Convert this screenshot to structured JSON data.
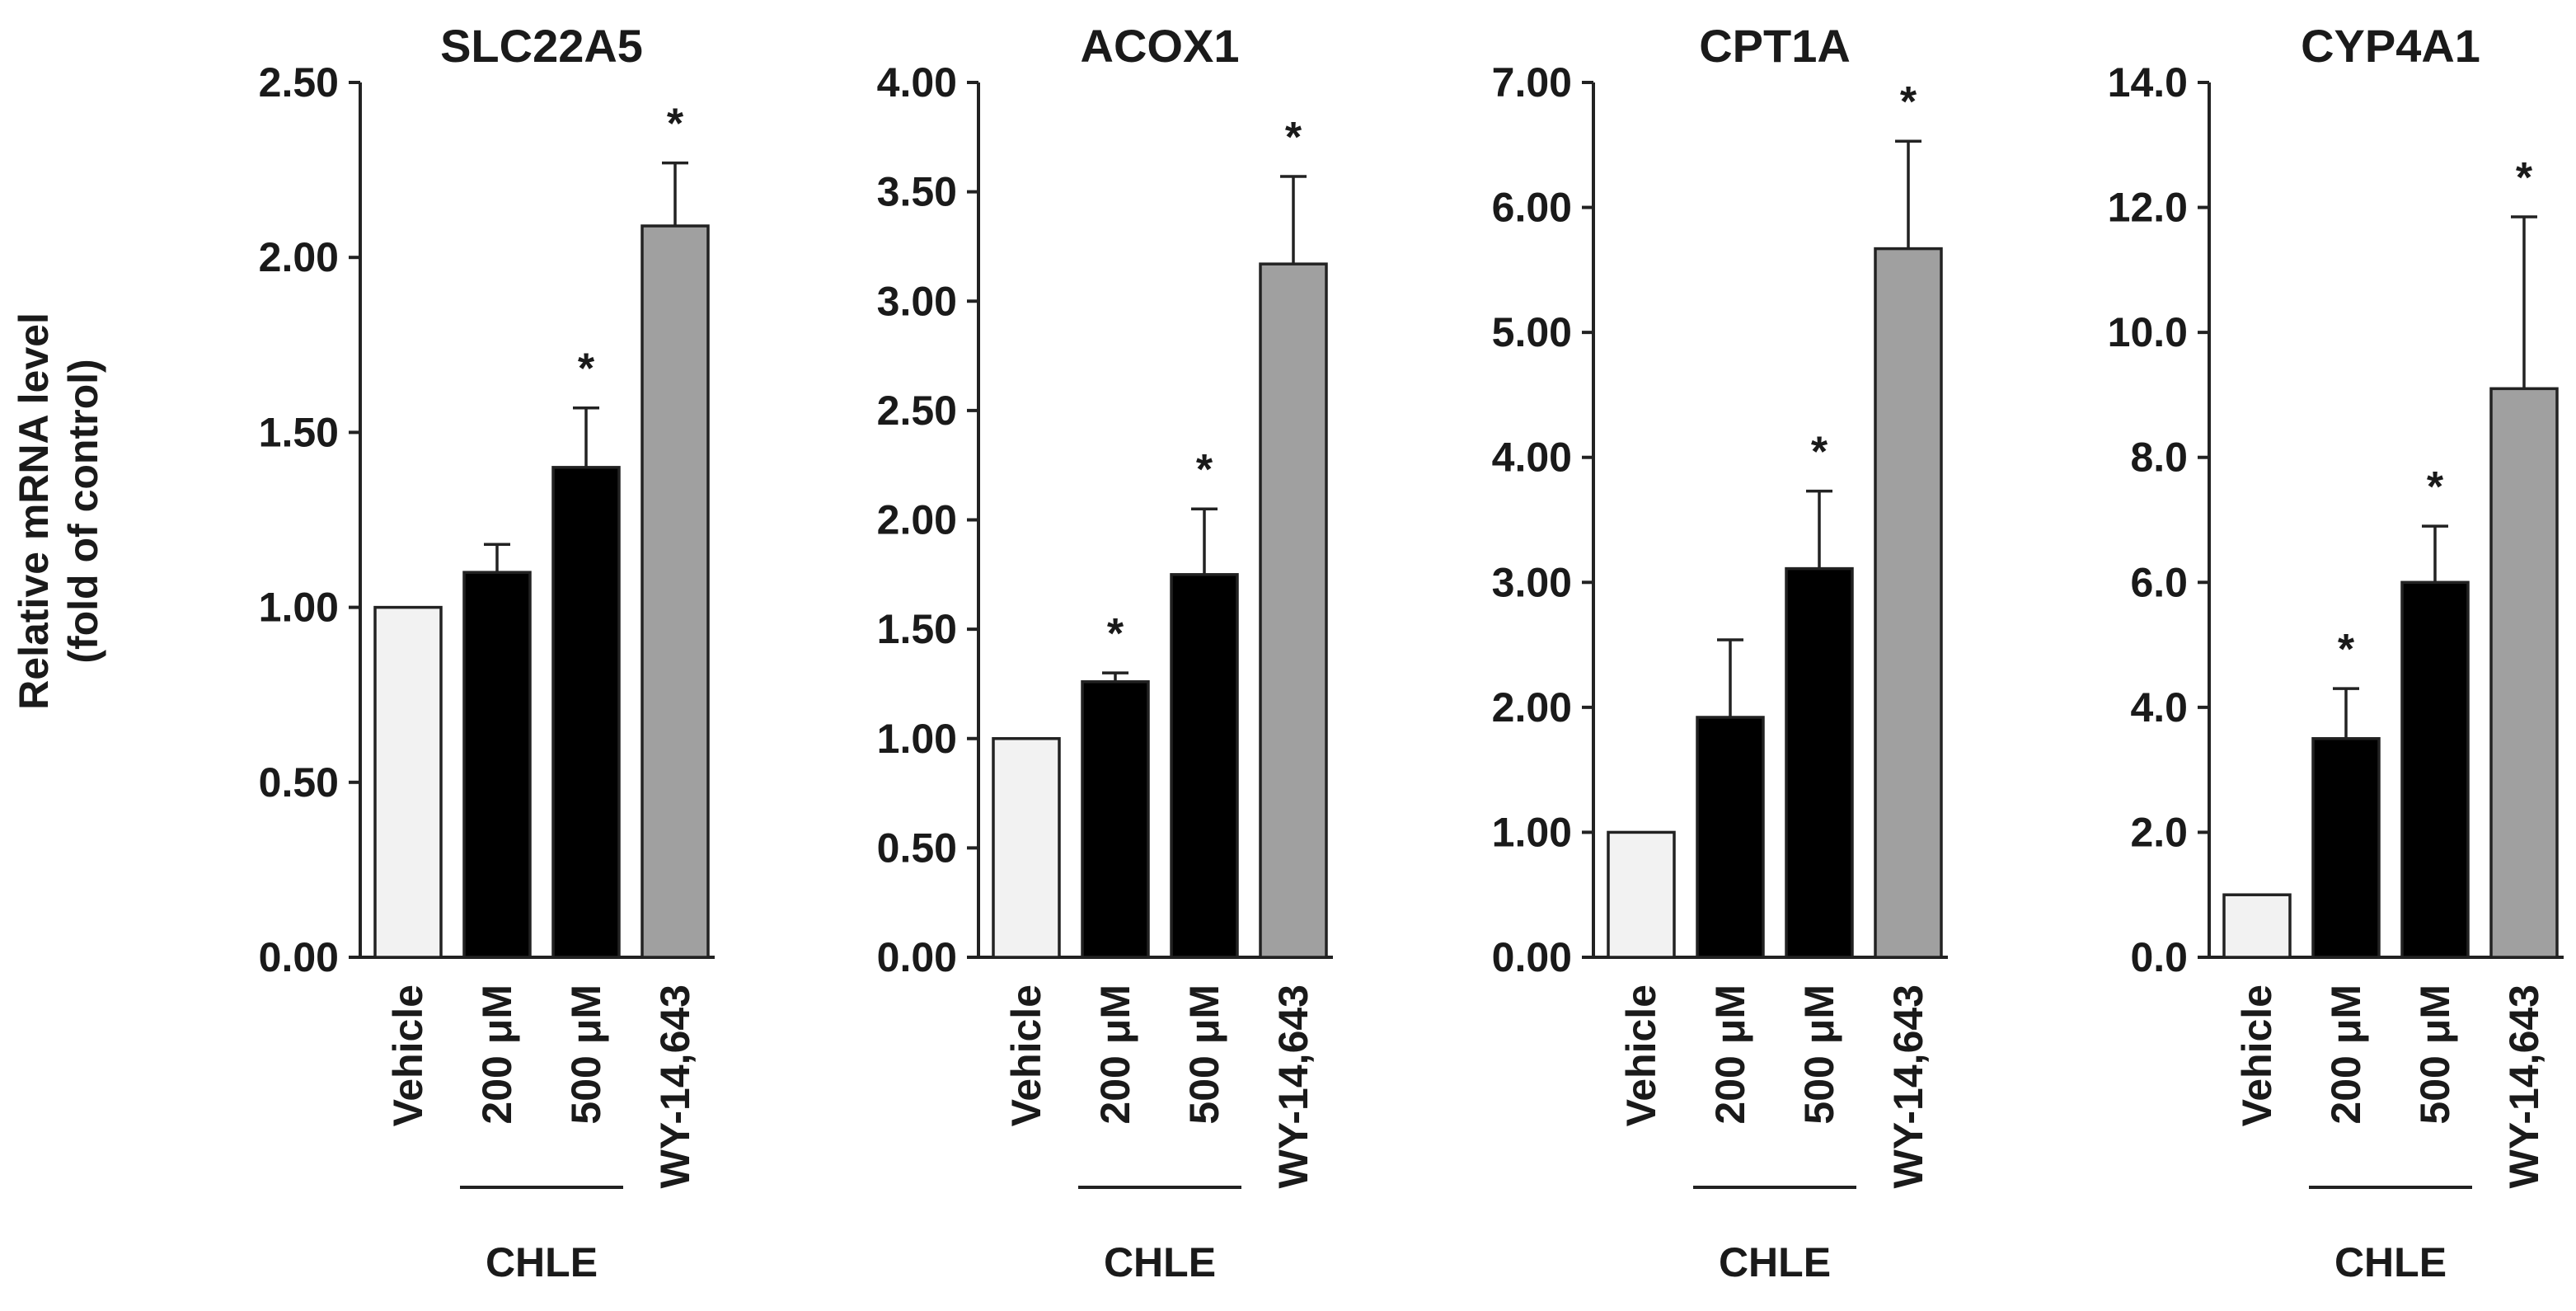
{
  "y_axis_label": {
    "line1": "Relative mRNA level",
    "line2": "(fold of control)"
  },
  "group_label": "CHLE",
  "colors": {
    "vehicle": "#f2f2f2",
    "chle": "#000000",
    "wy": "#a0a0a0",
    "axis": "#222222"
  },
  "chart_data": [
    {
      "type": "bar",
      "title": "SLC22A5",
      "categories": [
        "Vehicle",
        "200 μM",
        "500 μM",
        "WY-14,643"
      ],
      "values": [
        1.0,
        1.1,
        1.4,
        2.09
      ],
      "errors": [
        0,
        0.08,
        0.17,
        0.18
      ],
      "significant": [
        false,
        false,
        true,
        true
      ],
      "ylim": [
        0,
        2.5
      ],
      "yticks": [
        "0.00",
        "0.50",
        "1.00",
        "1.50",
        "2.00",
        "2.50"
      ],
      "xlabel": "",
      "ylabel": "Relative mRNA level (fold of control)"
    },
    {
      "type": "bar",
      "title": "ACOX1",
      "categories": [
        "Vehicle",
        "200 μM",
        "500 μM",
        "WY-14,643"
      ],
      "values": [
        1.0,
        1.26,
        1.75,
        3.17
      ],
      "errors": [
        0,
        0.04,
        0.3,
        0.4
      ],
      "significant": [
        false,
        true,
        true,
        true
      ],
      "ylim": [
        0,
        4.0
      ],
      "yticks": [
        "0.00",
        "0.50",
        "1.00",
        "1.50",
        "2.00",
        "2.50",
        "3.00",
        "3.50",
        "4.00"
      ],
      "xlabel": "",
      "ylabel": ""
    },
    {
      "type": "bar",
      "title": "CPT1A",
      "categories": [
        "Vehicle",
        "200 μM",
        "500 μM",
        "WY-14,643"
      ],
      "values": [
        1.0,
        1.92,
        3.11,
        5.67
      ],
      "errors": [
        0,
        0.62,
        0.62,
        0.86
      ],
      "significant": [
        false,
        false,
        true,
        true
      ],
      "ylim": [
        0,
        7.0
      ],
      "yticks": [
        "0.00",
        "1.00",
        "2.00",
        "3.00",
        "4.00",
        "5.00",
        "6.00",
        "7.00"
      ],
      "xlabel": "",
      "ylabel": ""
    },
    {
      "type": "bar",
      "title": "CYP4A1",
      "categories": [
        "Vehicle",
        "200 μM",
        "500 μM",
        "WY-14,643"
      ],
      "values": [
        1.0,
        3.5,
        6.0,
        9.1
      ],
      "errors": [
        0,
        0.8,
        0.9,
        2.75
      ],
      "significant": [
        false,
        true,
        true,
        true
      ],
      "ylim": [
        0,
        14.0
      ],
      "yticks": [
        "0.0",
        "2.0",
        "4.0",
        "6.0",
        "8.0",
        "10.0",
        "12.0",
        "14.0"
      ],
      "xlabel": "",
      "ylabel": ""
    }
  ]
}
